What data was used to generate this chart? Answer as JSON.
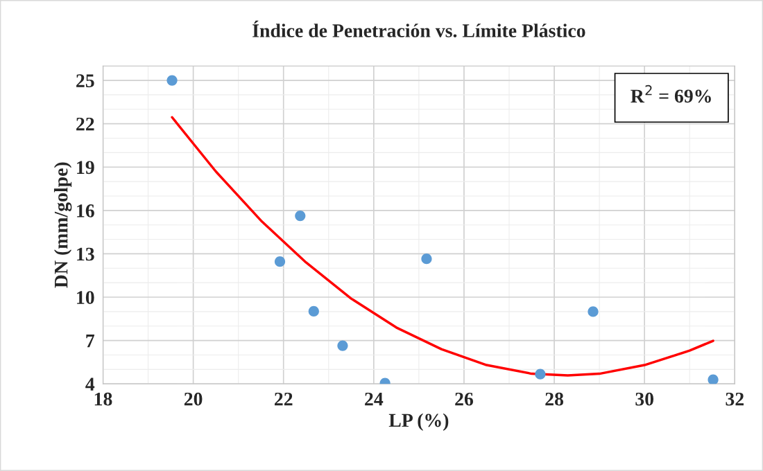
{
  "chart_data": {
    "type": "scatter",
    "title": "Índice de Penetración vs. Límite Plástico",
    "xlabel": "LP (%)",
    "ylabel": "DN (mm/golpe)",
    "xlim": [
      18,
      32
    ],
    "xticks": [
      18,
      20,
      22,
      24,
      26,
      28,
      30,
      32
    ],
    "ylim": [
      4,
      26
    ],
    "yticks": [
      4,
      7,
      10,
      13,
      16,
      19,
      22,
      25
    ],
    "grid": true,
    "marker": "circle",
    "series": [
      {
        "color": "#5b9bd5",
        "x": [
          19.53,
          21.92,
          22.37,
          22.67,
          23.31,
          24.25,
          25.17,
          27.69,
          28.86,
          31.52
        ],
        "values": [
          25.0,
          12.46,
          15.63,
          9.02,
          6.64,
          4.05,
          12.65,
          4.67,
          9.0,
          4.29
        ]
      },
      {
        "type": "line",
        "color": "#ff0000",
        "marker": "none",
        "x": [
          19.53,
          20.5,
          21.5,
          22.5,
          23.5,
          24.5,
          25.5,
          26.5,
          27.5,
          28.3,
          29,
          30,
          31,
          31.52
        ],
        "values": [
          22.45,
          18.7,
          15.3,
          12.4,
          9.9,
          7.9,
          6.4,
          5.3,
          4.7,
          4.58,
          4.7,
          5.3,
          6.3,
          6.98
        ]
      }
    ],
    "annotations": [
      "R$^{2}$ = 69%"
    ]
  }
}
